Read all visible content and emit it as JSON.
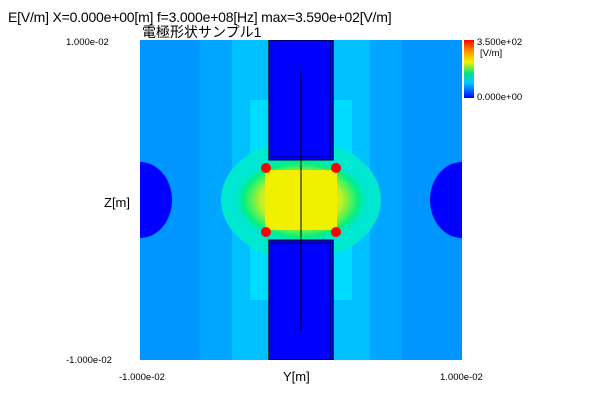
{
  "header": {
    "line": "E[V/m] X=0.000e+00[m] f=3.000e+08[Hz] max=3.590e+02[V/m]",
    "subtitle": "電極形状サンプル1"
  },
  "chart_data": {
    "type": "heatmap",
    "quantity": "E[V/m]",
    "xlabel": "Y[m]",
    "ylabel": "Z[m]",
    "xlim": [
      -0.01,
      0.01
    ],
    "ylim": [
      -0.01,
      0.01
    ],
    "x_tick_labels": [
      "-1.000e-02",
      "1.000e-02"
    ],
    "y_tick_labels": [
      "1.000e-02",
      "-1.000e-02"
    ],
    "colorbar": {
      "max_label": "3.500e+02",
      "unit": "[V/m]",
      "min_label": "0.000e+00",
      "range": [
        0,
        350
      ]
    },
    "max_value": 359,
    "electrodes": [
      {
        "name": "upper",
        "y": [
          -0.002,
          0.002
        ],
        "z": [
          0.0025,
          0.01
        ]
      },
      {
        "name": "lower",
        "y": [
          -0.002,
          0.002
        ],
        "z": [
          -0.01,
          -0.0025
        ]
      }
    ],
    "colors": {
      "blue": "#0000ff",
      "deep": "#0040ff",
      "cyan": "#00b4ff",
      "aqua": "#00dcff",
      "green": "#00f080",
      "yellow": "#f0f000",
      "red": "#ff0000"
    }
  }
}
